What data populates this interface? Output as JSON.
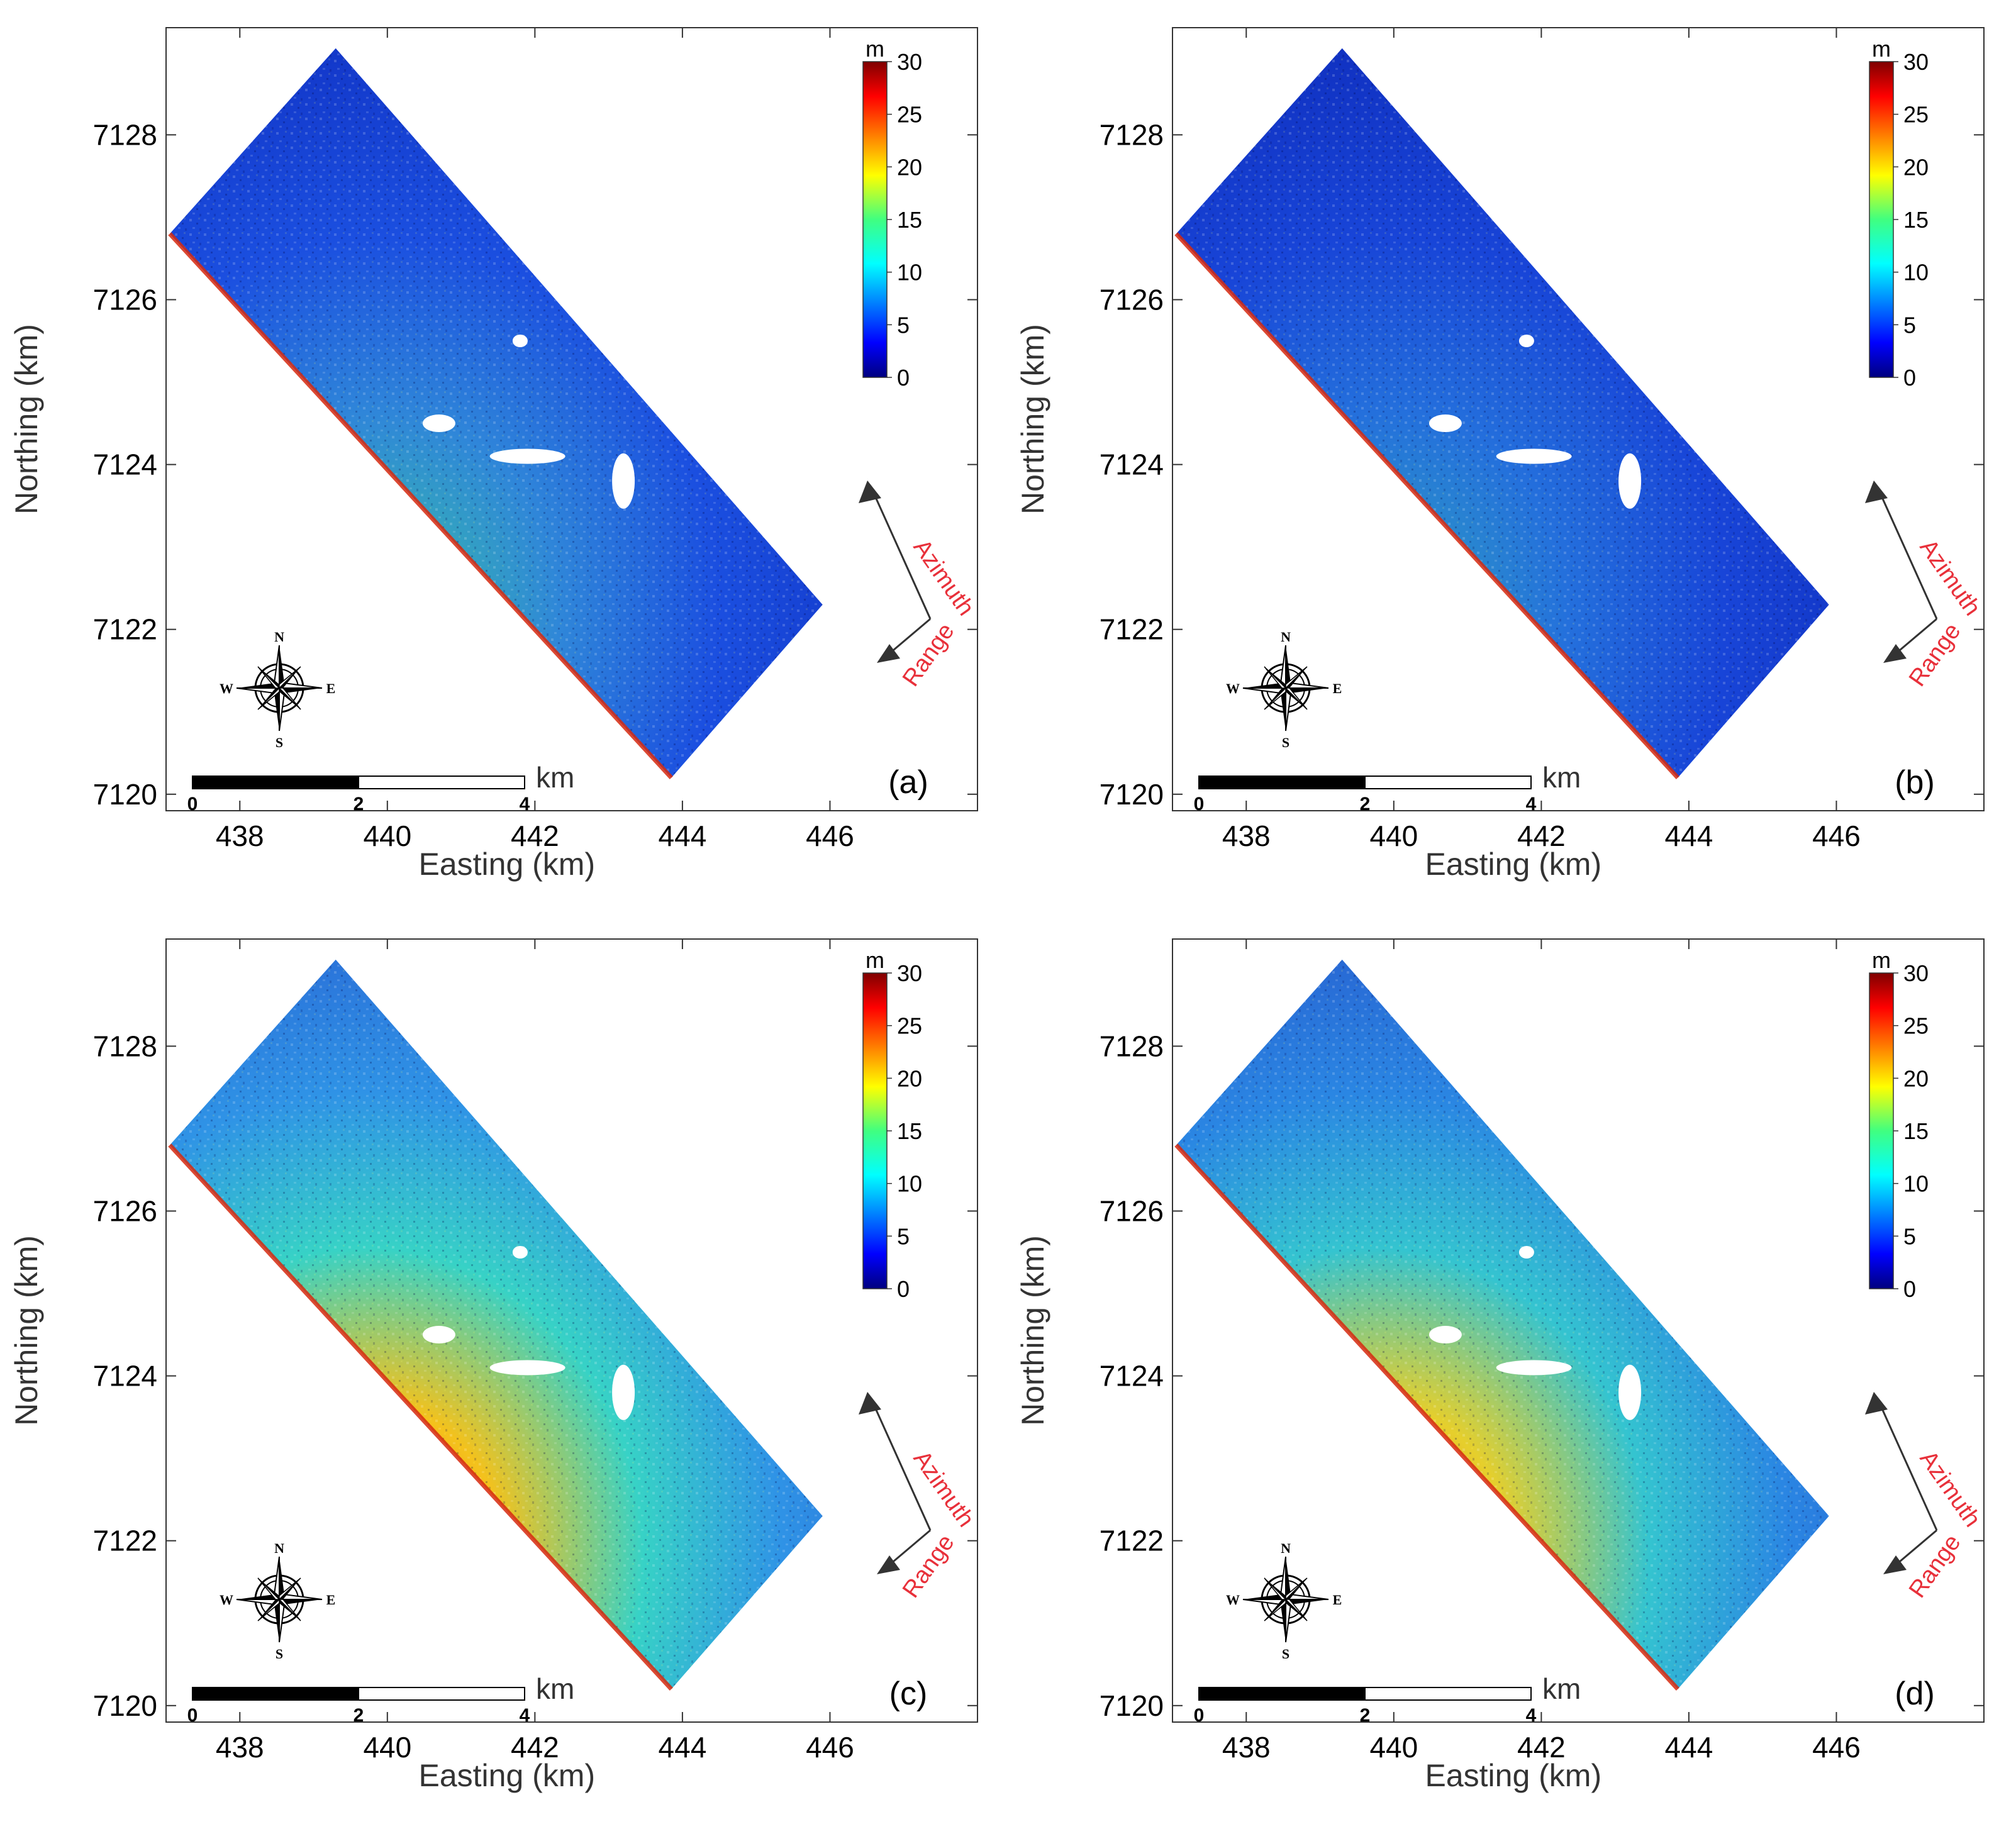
{
  "figure": {
    "panels": [
      {
        "id": "a",
        "label": "(a)",
        "palette": "low"
      },
      {
        "id": "b",
        "label": "(b)",
        "palette": "low2"
      },
      {
        "id": "c",
        "label": "(c)",
        "palette": "high"
      },
      {
        "id": "d",
        "label": "(d)",
        "palette": "high2"
      }
    ],
    "x_axis": {
      "title": "Easting (km)",
      "ticks": [
        438,
        440,
        442,
        444,
        446
      ],
      "range": [
        437,
        448
      ]
    },
    "y_axis": {
      "title": "Northing (km)",
      "ticks": [
        7120,
        7122,
        7124,
        7126,
        7128
      ],
      "range": [
        7119.8,
        7129.3
      ]
    },
    "colorbar": {
      "unit": "m",
      "ticks": [
        0,
        5,
        10,
        15,
        20,
        25,
        30
      ],
      "range": [
        0,
        30
      ],
      "colormap": "jet"
    },
    "compass": {
      "n": "N",
      "s": "S",
      "e": "E",
      "w": "W"
    },
    "scale_bar": {
      "labels": [
        "0",
        "2",
        "4"
      ],
      "unit": "km"
    },
    "arrows": {
      "azimuth": "Azimuth",
      "range": "Range"
    },
    "footprint_corners": [
      [
        437.05,
        7126.8
      ],
      [
        439.3,
        7129.05
      ],
      [
        445.9,
        7122.3
      ],
      [
        443.85,
        7120.2
      ]
    ],
    "colors": {
      "bg": "#ffffff",
      "frame": "#333333",
      "text": "#000000",
      "direction": "#e8303a"
    }
  }
}
